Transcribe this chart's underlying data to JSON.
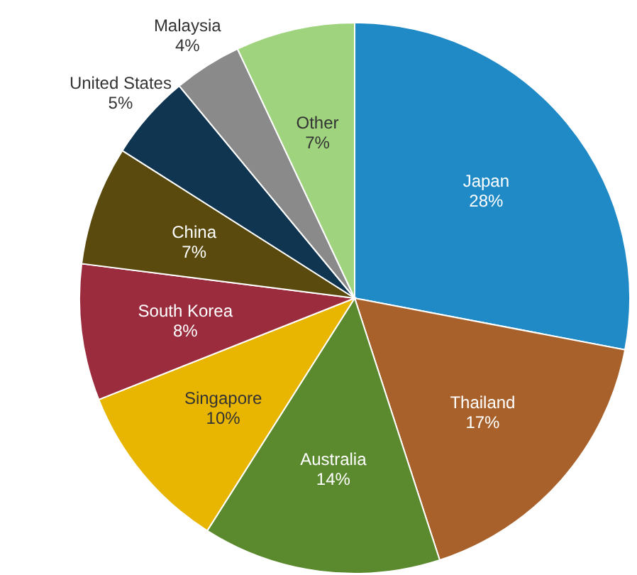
{
  "chart_data": {
    "type": "pie",
    "categories": [
      "Japan",
      "Thailand",
      "Australia",
      "Singapore",
      "South Korea",
      "China",
      "United States",
      "Malaysia",
      "Other"
    ],
    "values": [
      28,
      17,
      14,
      10,
      8,
      7,
      5,
      4,
      7
    ],
    "value_labels": [
      "28%",
      "17%",
      "14%",
      "10%",
      "8%",
      "7%",
      "5%",
      "4%",
      "7%"
    ],
    "colors": [
      "#1f8ac6",
      "#a8612a",
      "#5b8a2e",
      "#e8b500",
      "#9b2c3e",
      "#5a4a0e",
      "#0f3550",
      "#8a8a8a",
      "#9fd37e"
    ]
  }
}
